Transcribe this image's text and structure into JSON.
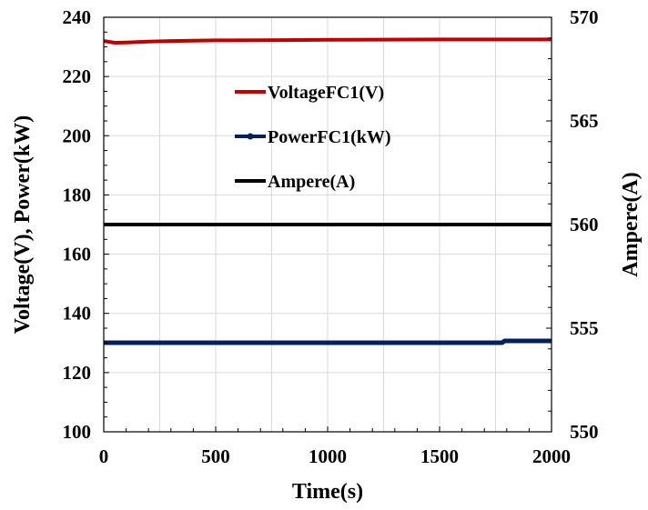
{
  "chart_data": {
    "type": "line",
    "xlabel": "Time(s)",
    "ylabel": "Voltage(V), Power(kW)",
    "y2label": "Ampere(A)",
    "xlim": [
      0,
      2000
    ],
    "ylim": [
      100,
      240
    ],
    "y2lim": [
      550,
      570
    ],
    "x_ticks": [
      0,
      500,
      1000,
      1500,
      2000
    ],
    "y_ticks": [
      100,
      120,
      140,
      160,
      180,
      200,
      220,
      240
    ],
    "y2_ticks": [
      550,
      555,
      560,
      565,
      570
    ],
    "x_tick_labels": [
      "0",
      "500",
      "1000",
      "1500",
      "2000"
    ],
    "y_tick_labels": [
      "100",
      "120",
      "140",
      "160",
      "180",
      "200",
      "220",
      "240"
    ],
    "y2_tick_labels": [
      "550",
      "555",
      "560",
      "565",
      "570"
    ],
    "grid": true,
    "legend_position": "upper-center",
    "series": [
      {
        "name": "VoltageFC1(V)",
        "axis": "left",
        "color": "#C00000",
        "marker": "none",
        "x": [
          0,
          50,
          100,
          200,
          300,
          500,
          800,
          1000,
          1500,
          2000
        ],
        "y": [
          232,
          231.4,
          231.5,
          231.8,
          232,
          232.2,
          232.3,
          232.4,
          232.5,
          232.5
        ]
      },
      {
        "name": "PowerFC1(kW)",
        "axis": "left",
        "color": "#002060",
        "marker": "dot",
        "x": [
          0,
          500,
          1000,
          1500,
          1780,
          1790,
          2000
        ],
        "y": [
          130.1,
          130.1,
          130.1,
          130.1,
          130.1,
          130.7,
          130.7
        ]
      },
      {
        "name": "Ampere(A)",
        "axis": "right",
        "color": "#000000",
        "marker": "none",
        "x": [
          0,
          2000
        ],
        "y": [
          560,
          560
        ]
      }
    ]
  }
}
